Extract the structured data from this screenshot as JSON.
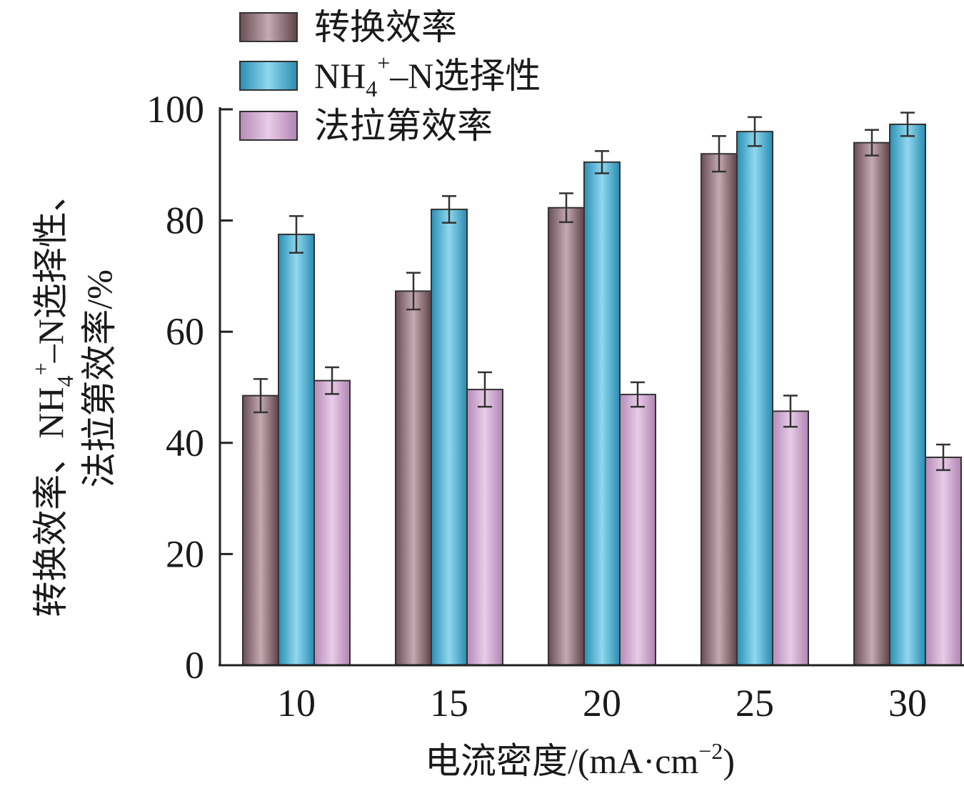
{
  "chart_data": {
    "type": "bar",
    "categories": [
      "10",
      "15",
      "20",
      "25",
      "30"
    ],
    "series": [
      {
        "name": "转换效率",
        "color": "#9a7a82",
        "values": [
          48.5,
          67.3,
          82.3,
          92.0,
          94.0
        ],
        "errors": [
          3.0,
          3.3,
          2.6,
          3.2,
          2.3
        ]
      },
      {
        "name": "NH₄⁺–N选择性",
        "color": "#54b8d8",
        "values": [
          77.5,
          82.0,
          90.5,
          96.0,
          97.3
        ],
        "errors": [
          3.3,
          2.4,
          2.0,
          2.6,
          2.1
        ]
      },
      {
        "name": "法拉第效率",
        "color": "#cfa6cf",
        "values": [
          51.2,
          49.6,
          48.7,
          45.7,
          37.4
        ],
        "errors": [
          2.4,
          3.1,
          2.2,
          2.8,
          2.3
        ]
      }
    ],
    "legend": {
      "items": [
        {
          "main": "转换效率"
        },
        {
          "main": "NH",
          "sub": "4",
          "sup": "+",
          "rest": "–N选择性"
        },
        {
          "main": "法拉第效率"
        }
      ],
      "placement": "top-center"
    },
    "xlabel": {
      "main": "电流密度/(mA·cm",
      "sup": "−2",
      "end": ")"
    },
    "ylabel": {
      "line1": {
        "main": "转换效率、NH",
        "sub": "4",
        "sup": "+",
        "rest": "–N选择性、"
      },
      "line2": "法拉第效率/%"
    },
    "yticks": [
      "0",
      "20",
      "40",
      "60",
      "80",
      "100"
    ],
    "ylim": [
      0,
      100
    ],
    "grid": false
  }
}
